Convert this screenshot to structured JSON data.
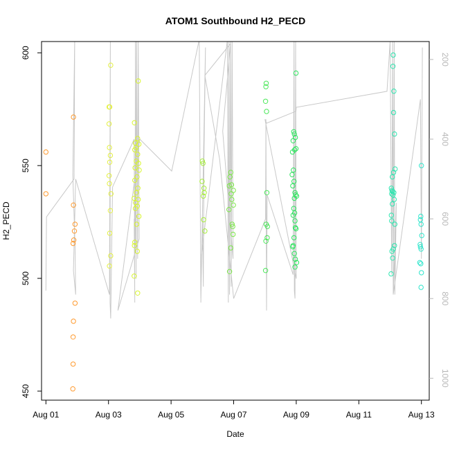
{
  "chart_data": {
    "type": "scatter",
    "title": "ATOM1 Southbound H2_PECD",
    "xlabel": "Date",
    "ylabel": "H2_PECD",
    "x_tick_labels": [
      "Aug 01",
      "Aug 03",
      "Aug 05",
      "Aug 07",
      "Aug 09",
      "Aug 11",
      "Aug 13"
    ],
    "y_ticks": [
      450,
      500,
      550,
      600
    ],
    "ylim": [
      446,
      605
    ],
    "xlim_days": [
      0.86,
      13.25
    ],
    "secondary_axis": {
      "side": "right",
      "ticks": [
        200,
        400,
        600,
        800,
        1000
      ],
      "range": [
        155,
        1055
      ],
      "inverted": true,
      "color": "#b8b8b8"
    },
    "point_style": "open-circle",
    "grid": false,
    "points": [
      {
        "day": 1.0,
        "value": 556,
        "color": "#ff9a2e"
      },
      {
        "day": 1.0,
        "value": 537.5,
        "color": "#ff9a2e"
      },
      {
        "day": 1.88,
        "value": 571.5,
        "color": "#ff9a2e"
      },
      {
        "day": 1.88,
        "value": 532.5,
        "color": "#ff9a2e"
      },
      {
        "day": 1.93,
        "value": 524,
        "color": "#ff9a2e"
      },
      {
        "day": 1.91,
        "value": 521,
        "color": "#ff9a2e"
      },
      {
        "day": 1.89,
        "value": 517,
        "color": "#ff9a2e"
      },
      {
        "day": 1.87,
        "value": 515.5,
        "color": "#ff9a2e"
      },
      {
        "day": 1.93,
        "value": 489,
        "color": "#ff9a2e"
      },
      {
        "day": 1.88,
        "value": 481,
        "color": "#ff9a2e"
      },
      {
        "day": 1.87,
        "value": 474,
        "color": "#ff9a2e"
      },
      {
        "day": 1.87,
        "value": 462,
        "color": "#ff9a2e"
      },
      {
        "day": 1.86,
        "value": 451,
        "color": "#ff9a2e"
      },
      {
        "day": 3.07,
        "value": 594.5,
        "color": "#e4f042"
      },
      {
        "day": 3.04,
        "value": 576,
        "color": "#e4f042"
      },
      {
        "day": 3.02,
        "value": 576,
        "color": "#e4f042"
      },
      {
        "day": 3.02,
        "value": 568.5,
        "color": "#e4f042"
      },
      {
        "day": 3.03,
        "value": 558,
        "color": "#e4f042"
      },
      {
        "day": 3.06,
        "value": 554.5,
        "color": "#e4f042"
      },
      {
        "day": 3.04,
        "value": 551.5,
        "color": "#e4f042"
      },
      {
        "day": 3.02,
        "value": 545.5,
        "color": "#e4f042"
      },
      {
        "day": 3.03,
        "value": 542,
        "color": "#e4f042"
      },
      {
        "day": 3.08,
        "value": 537.5,
        "color": "#e4f042"
      },
      {
        "day": 3.06,
        "value": 530,
        "color": "#e4f042"
      },
      {
        "day": 3.04,
        "value": 520,
        "color": "#e4f042"
      },
      {
        "day": 3.07,
        "value": 510,
        "color": "#e4f042"
      },
      {
        "day": 3.03,
        "value": 505.5,
        "color": "#e4f042"
      },
      {
        "day": 3.95,
        "value": 587.5,
        "color": "#d8f52e"
      },
      {
        "day": 3.83,
        "value": 569,
        "color": "#d8f52e"
      },
      {
        "day": 3.93,
        "value": 562,
        "color": "#d8f52e"
      },
      {
        "day": 3.86,
        "value": 560,
        "color": "#d8f52e"
      },
      {
        "day": 3.97,
        "value": 559.5,
        "color": "#d8f52e"
      },
      {
        "day": 3.88,
        "value": 558,
        "color": "#d8f52e"
      },
      {
        "day": 3.84,
        "value": 557,
        "color": "#d8f52e"
      },
      {
        "day": 3.93,
        "value": 555,
        "color": "#d8f52e"
      },
      {
        "day": 3.89,
        "value": 552,
        "color": "#d8f52e"
      },
      {
        "day": 3.96,
        "value": 551,
        "color": "#d8f52e"
      },
      {
        "day": 3.85,
        "value": 549,
        "color": "#d8f52e"
      },
      {
        "day": 3.98,
        "value": 548,
        "color": "#d8f52e"
      },
      {
        "day": 3.91,
        "value": 545,
        "color": "#d8f52e"
      },
      {
        "day": 3.84,
        "value": 543.5,
        "color": "#d8f52e"
      },
      {
        "day": 3.94,
        "value": 540,
        "color": "#d8f52e"
      },
      {
        "day": 3.89,
        "value": 538,
        "color": "#d8f52e"
      },
      {
        "day": 3.82,
        "value": 535.5,
        "color": "#d8f52e"
      },
      {
        "day": 3.95,
        "value": 535,
        "color": "#d8f52e"
      },
      {
        "day": 3.87,
        "value": 533.5,
        "color": "#d8f52e"
      },
      {
        "day": 3.92,
        "value": 532,
        "color": "#d8f52e"
      },
      {
        "day": 3.86,
        "value": 531,
        "color": "#d8f52e"
      },
      {
        "day": 3.97,
        "value": 527.5,
        "color": "#d8f52e"
      },
      {
        "day": 3.9,
        "value": 524,
        "color": "#d8f52e"
      },
      {
        "day": 3.84,
        "value": 516,
        "color": "#d8f52e"
      },
      {
        "day": 3.83,
        "value": 514.5,
        "color": "#d8f52e"
      },
      {
        "day": 3.92,
        "value": 512,
        "color": "#d8f52e"
      },
      {
        "day": 3.82,
        "value": 501,
        "color": "#d8f52e"
      },
      {
        "day": 3.93,
        "value": 493.5,
        "color": "#d8f52e"
      },
      {
        "day": 6.0,
        "value": 552,
        "color": "#a6ee3a"
      },
      {
        "day": 6.02,
        "value": 551,
        "color": "#a6ee3a"
      },
      {
        "day": 5.99,
        "value": 543,
        "color": "#a6ee3a"
      },
      {
        "day": 6.05,
        "value": 540,
        "color": "#a6ee3a"
      },
      {
        "day": 6.06,
        "value": 538,
        "color": "#a6ee3a"
      },
      {
        "day": 6.03,
        "value": 536.5,
        "color": "#a6ee3a"
      },
      {
        "day": 6.04,
        "value": 526,
        "color": "#a6ee3a"
      },
      {
        "day": 6.08,
        "value": 521,
        "color": "#a6ee3a"
      },
      {
        "day": 6.91,
        "value": 547,
        "color": "#7de84a"
      },
      {
        "day": 6.88,
        "value": 545,
        "color": "#7de84a"
      },
      {
        "day": 6.93,
        "value": 541.5,
        "color": "#7de84a"
      },
      {
        "day": 6.86,
        "value": 541,
        "color": "#7de84a"
      },
      {
        "day": 6.99,
        "value": 539,
        "color": "#7de84a"
      },
      {
        "day": 6.92,
        "value": 537.5,
        "color": "#7de84a"
      },
      {
        "day": 6.94,
        "value": 535,
        "color": "#7de84a"
      },
      {
        "day": 6.99,
        "value": 532.5,
        "color": "#7de84a"
      },
      {
        "day": 6.85,
        "value": 530.5,
        "color": "#7de84a"
      },
      {
        "day": 6.95,
        "value": 524,
        "color": "#7de84a"
      },
      {
        "day": 6.97,
        "value": 523,
        "color": "#7de84a"
      },
      {
        "day": 6.98,
        "value": 519.5,
        "color": "#7de84a"
      },
      {
        "day": 6.91,
        "value": 513.5,
        "color": "#7de84a"
      },
      {
        "day": 6.87,
        "value": 503,
        "color": "#7de84a"
      },
      {
        "day": 8.04,
        "value": 586.5,
        "color": "#4be85a"
      },
      {
        "day": 8.03,
        "value": 585,
        "color": "#4be85a"
      },
      {
        "day": 8.02,
        "value": 578.5,
        "color": "#4be85a"
      },
      {
        "day": 8.05,
        "value": 574,
        "color": "#4be85a"
      },
      {
        "day": 8.06,
        "value": 538,
        "color": "#4be85a"
      },
      {
        "day": 8.04,
        "value": 524,
        "color": "#4be85a"
      },
      {
        "day": 8.08,
        "value": 523,
        "color": "#4be85a"
      },
      {
        "day": 8.07,
        "value": 518,
        "color": "#4be85a"
      },
      {
        "day": 8.03,
        "value": 516.5,
        "color": "#4be85a"
      },
      {
        "day": 8.02,
        "value": 503.5,
        "color": "#4be85a"
      },
      {
        "day": 8.99,
        "value": 591,
        "color": "#2de65e"
      },
      {
        "day": 8.92,
        "value": 565,
        "color": "#2de65e"
      },
      {
        "day": 8.94,
        "value": 564,
        "color": "#2de65e"
      },
      {
        "day": 8.97,
        "value": 562.5,
        "color": "#2de65e"
      },
      {
        "day": 8.9,
        "value": 561,
        "color": "#2de65e"
      },
      {
        "day": 8.99,
        "value": 557.5,
        "color": "#2de65e"
      },
      {
        "day": 8.95,
        "value": 557,
        "color": "#2de65e"
      },
      {
        "day": 8.88,
        "value": 556,
        "color": "#2de65e"
      },
      {
        "day": 8.91,
        "value": 548,
        "color": "#2de65e"
      },
      {
        "day": 8.87,
        "value": 546,
        "color": "#2de65e"
      },
      {
        "day": 8.93,
        "value": 543,
        "color": "#2de65e"
      },
      {
        "day": 8.89,
        "value": 541,
        "color": "#2de65e"
      },
      {
        "day": 8.96,
        "value": 538,
        "color": "#2de65e"
      },
      {
        "day": 8.98,
        "value": 537,
        "color": "#2de65e"
      },
      {
        "day": 9.01,
        "value": 536.5,
        "color": "#2de65e"
      },
      {
        "day": 8.94,
        "value": 535.5,
        "color": "#2de65e"
      },
      {
        "day": 8.92,
        "value": 531,
        "color": "#2de65e"
      },
      {
        "day": 8.95,
        "value": 529,
        "color": "#2de65e"
      },
      {
        "day": 8.9,
        "value": 528,
        "color": "#2de65e"
      },
      {
        "day": 8.96,
        "value": 525.5,
        "color": "#2de65e"
      },
      {
        "day": 8.97,
        "value": 522.5,
        "color": "#2de65e"
      },
      {
        "day": 8.99,
        "value": 522,
        "color": "#2de65e"
      },
      {
        "day": 8.93,
        "value": 518,
        "color": "#2de65e"
      },
      {
        "day": 8.9,
        "value": 514.5,
        "color": "#2de65e"
      },
      {
        "day": 8.89,
        "value": 514,
        "color": "#2de65e"
      },
      {
        "day": 8.94,
        "value": 511,
        "color": "#2de65e"
      },
      {
        "day": 8.97,
        "value": 508.5,
        "color": "#2de65e"
      },
      {
        "day": 9.01,
        "value": 507,
        "color": "#2de65e"
      },
      {
        "day": 8.96,
        "value": 505,
        "color": "#2de65e"
      },
      {
        "day": 12.1,
        "value": 599,
        "color": "#2de6b0"
      },
      {
        "day": 12.09,
        "value": 594,
        "color": "#2de6b0"
      },
      {
        "day": 12.12,
        "value": 583,
        "color": "#2de6b0"
      },
      {
        "day": 12.11,
        "value": 573.5,
        "color": "#2de6b0"
      },
      {
        "day": 12.14,
        "value": 564,
        "color": "#2de6b0"
      },
      {
        "day": 12.16,
        "value": 548.5,
        "color": "#2de6b0"
      },
      {
        "day": 12.11,
        "value": 547,
        "color": "#2de6b0"
      },
      {
        "day": 12.07,
        "value": 545,
        "color": "#2de6b0"
      },
      {
        "day": 12.04,
        "value": 540,
        "color": "#2de6b0"
      },
      {
        "day": 12.06,
        "value": 539,
        "color": "#2de6b0"
      },
      {
        "day": 12.08,
        "value": 538.5,
        "color": "#2de6b0"
      },
      {
        "day": 12.12,
        "value": 538,
        "color": "#2de6b0"
      },
      {
        "day": 12.05,
        "value": 537.5,
        "color": "#2de6b0"
      },
      {
        "day": 12.09,
        "value": 537,
        "color": "#2de6b0"
      },
      {
        "day": 12.13,
        "value": 535,
        "color": "#2de6b0"
      },
      {
        "day": 12.07,
        "value": 533,
        "color": "#2de6b0"
      },
      {
        "day": 12.04,
        "value": 528,
        "color": "#2de6b0"
      },
      {
        "day": 12.05,
        "value": 525.5,
        "color": "#2de6b0"
      },
      {
        "day": 12.15,
        "value": 524,
        "color": "#2de6b0"
      },
      {
        "day": 12.14,
        "value": 514.5,
        "color": "#2de6b0"
      },
      {
        "day": 12.1,
        "value": 513,
        "color": "#2de6b0"
      },
      {
        "day": 12.06,
        "value": 512,
        "color": "#2de6b0"
      },
      {
        "day": 12.08,
        "value": 509,
        "color": "#2de6b0"
      },
      {
        "day": 12.03,
        "value": 502,
        "color": "#2de6b0"
      },
      {
        "day": 13.0,
        "value": 550,
        "color": "#2ee6cc"
      },
      {
        "day": 12.98,
        "value": 527.5,
        "color": "#2ee6cc"
      },
      {
        "day": 12.97,
        "value": 526,
        "color": "#2ee6cc"
      },
      {
        "day": 12.99,
        "value": 524,
        "color": "#2ee6cc"
      },
      {
        "day": 13.01,
        "value": 519,
        "color": "#2ee6cc"
      },
      {
        "day": 12.96,
        "value": 515,
        "color": "#2ee6cc"
      },
      {
        "day": 12.97,
        "value": 514,
        "color": "#2ee6cc"
      },
      {
        "day": 12.99,
        "value": 513,
        "color": "#2ee6cc"
      },
      {
        "day": 12.95,
        "value": 507,
        "color": "#2ee6cc"
      },
      {
        "day": 12.98,
        "value": 506.5,
        "color": "#2ee6cc"
      },
      {
        "day": 13.0,
        "value": 502.5,
        "color": "#2ee6cc"
      },
      {
        "day": 12.99,
        "value": 496,
        "color": "#2ee6cc"
      }
    ],
    "line_series": {
      "color": "#c8c8c8",
      "secondary_axis_values": [
        [
          1.0,
          780
        ],
        [
          1.02,
          595
        ],
        [
          1.9,
          500
        ],
        [
          1.92,
          150
        ],
        [
          1.86,
          490
        ],
        [
          1.93,
          670
        ],
        [
          1.95,
          790
        ],
        [
          1.88,
          730
        ],
        [
          1.95,
          500
        ],
        [
          3.03,
          790
        ],
        [
          3.06,
          155
        ],
        [
          3.05,
          810
        ],
        [
          3.07,
          850
        ],
        [
          3.13,
          520
        ],
        [
          3.82,
          400
        ],
        [
          3.84,
          810
        ],
        [
          3.82,
          600
        ],
        [
          3.85,
          680
        ],
        [
          3.86,
          150
        ],
        [
          3.88,
          750
        ],
        [
          3.9,
          150
        ],
        [
          3.93,
          700
        ],
        [
          3.95,
          150
        ],
        [
          3.98,
          650
        ],
        [
          3.3,
          830
        ],
        [
          4.0,
          400
        ],
        [
          5.02,
          480
        ],
        [
          5.9,
          150
        ],
        [
          5.95,
          800
        ],
        [
          6.0,
          590
        ],
        [
          6.03,
          770
        ],
        [
          6.05,
          450
        ],
        [
          6.1,
          170
        ],
        [
          5.95,
          810
        ],
        [
          5.97,
          690
        ],
        [
          6.8,
          150
        ],
        [
          6.83,
          810
        ],
        [
          6.85,
          155
        ],
        [
          6.87,
          790
        ],
        [
          6.9,
          150
        ],
        [
          6.92,
          770
        ],
        [
          6.95,
          150
        ],
        [
          6.98,
          700
        ],
        [
          6.65,
          380
        ],
        [
          6.9,
          160
        ],
        [
          6.08,
          240
        ],
        [
          6.55,
          450
        ],
        [
          7.0,
          800
        ],
        [
          8.02,
          600
        ],
        [
          8.03,
          350
        ],
        [
          8.05,
          830
        ],
        [
          8.07,
          540
        ],
        [
          8.9,
          740
        ],
        [
          8.93,
          150
        ],
        [
          8.94,
          780
        ],
        [
          8.96,
          800
        ],
        [
          8.98,
          150
        ],
        [
          9.0,
          750
        ],
        [
          8.0,
          350
        ],
        [
          8.05,
          360
        ],
        [
          8.99,
          330
        ],
        [
          9.0,
          320
        ],
        [
          11.9,
          280
        ],
        [
          12.0,
          155
        ],
        [
          12.05,
          740
        ],
        [
          12.08,
          155
        ],
        [
          12.1,
          790
        ],
        [
          12.13,
          155
        ],
        [
          12.15,
          790
        ],
        [
          12.2,
          560
        ],
        [
          12.1,
          790
        ],
        [
          12.97,
          300
        ],
        [
          13.0,
          700
        ],
        [
          13.03,
          170
        ]
      ]
    }
  }
}
